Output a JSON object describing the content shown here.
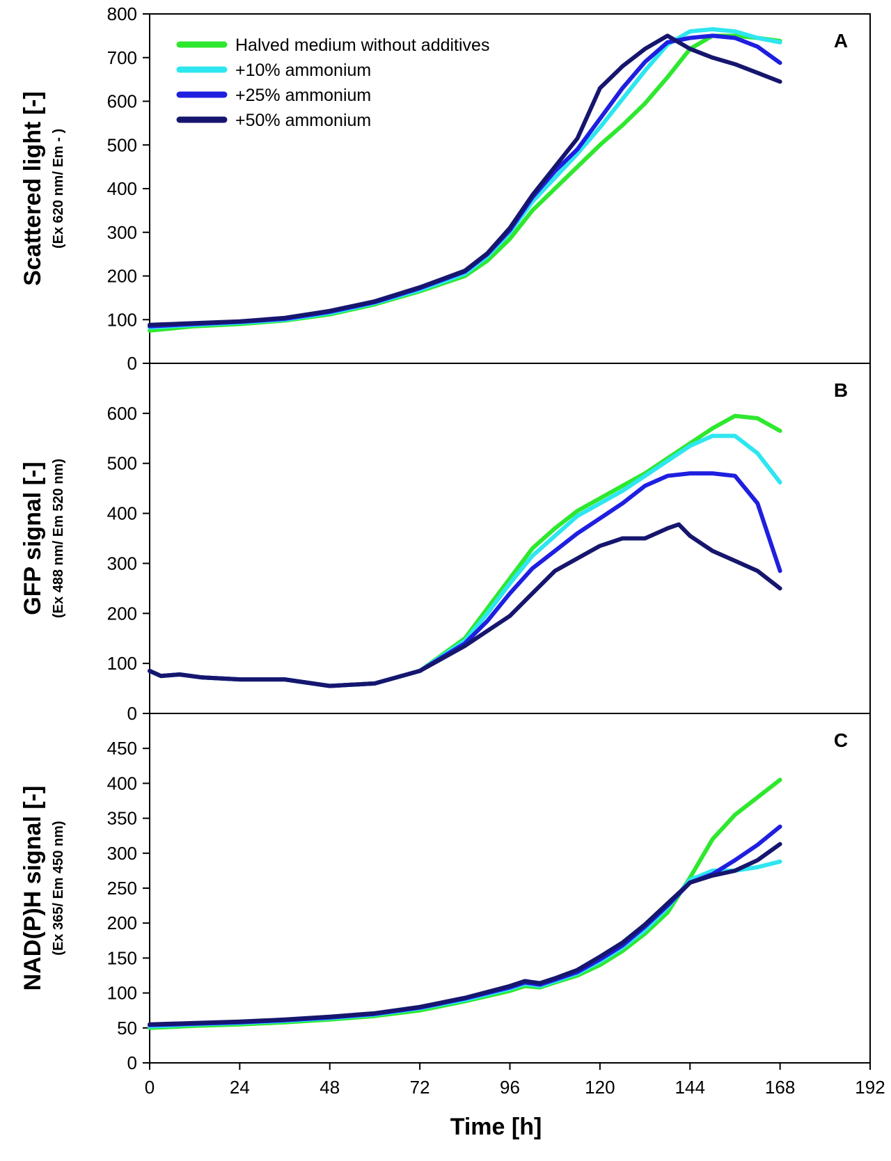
{
  "colors": {
    "Halved medium without additives": "#2ee82e",
    "+10% ammonium": "#2ee6f0",
    "+25% ammonium": "#1f1fe0",
    "+50% ammonium": "#16166e"
  },
  "chart_data": [
    {
      "type": "line",
      "panel": "A",
      "ylabel": "Scattered light   [-]",
      "ylabel_sub": "(Ex 620 nm/ Em - )",
      "ylim": [
        0,
        800
      ],
      "yticks": [
        0,
        100,
        200,
        300,
        400,
        500,
        600,
        700,
        800
      ],
      "xlim": [
        0,
        192
      ],
      "legend": "top-left",
      "series": [
        {
          "name": "Halved medium without additives",
          "x": [
            0,
            12,
            24,
            36,
            48,
            60,
            72,
            84,
            90,
            96,
            102,
            108,
            114,
            120,
            126,
            132,
            138,
            144,
            150,
            156,
            162,
            168
          ],
          "y": [
            75,
            85,
            90,
            98,
            112,
            135,
            165,
            200,
            235,
            285,
            350,
            400,
            450,
            500,
            545,
            595,
            655,
            720,
            750,
            750,
            745,
            738
          ]
        },
        {
          "name": "+10% ammonium",
          "x": [
            0,
            12,
            24,
            36,
            48,
            60,
            72,
            84,
            90,
            96,
            102,
            108,
            114,
            120,
            126,
            132,
            138,
            144,
            150,
            156,
            162,
            168
          ],
          "y": [
            82,
            88,
            93,
            100,
            115,
            138,
            168,
            205,
            245,
            300,
            370,
            425,
            480,
            540,
            605,
            670,
            730,
            760,
            765,
            760,
            745,
            735
          ]
        },
        {
          "name": "+25% ammonium",
          "x": [
            0,
            12,
            24,
            36,
            48,
            60,
            72,
            84,
            90,
            96,
            102,
            108,
            114,
            120,
            126,
            132,
            138,
            144,
            150,
            156,
            162,
            168
          ],
          "y": [
            85,
            90,
            95,
            102,
            118,
            140,
            172,
            210,
            250,
            305,
            380,
            440,
            490,
            560,
            630,
            690,
            735,
            745,
            750,
            745,
            725,
            688
          ]
        },
        {
          "name": "+50% ammonium",
          "x": [
            0,
            12,
            24,
            36,
            48,
            60,
            72,
            84,
            90,
            96,
            102,
            108,
            114,
            120,
            126,
            132,
            138,
            144,
            150,
            156,
            162,
            168
          ],
          "y": [
            88,
            92,
            96,
            104,
            120,
            142,
            174,
            212,
            252,
            310,
            385,
            450,
            515,
            630,
            680,
            720,
            750,
            720,
            700,
            685,
            665,
            645
          ]
        }
      ]
    },
    {
      "type": "line",
      "panel": "B",
      "ylabel": "GFP signal   [-]",
      "ylabel_sub": "(Ex 488 nm/ Em 520 nm)",
      "ylim": [
        0,
        700
      ],
      "yticks": [
        0,
        100,
        200,
        300,
        400,
        500,
        600
      ],
      "xlim": [
        0,
        192
      ],
      "series": [
        {
          "name": "Halved medium without additives",
          "x": [
            0,
            3,
            8,
            14,
            24,
            36,
            48,
            60,
            72,
            84,
            90,
            96,
            102,
            108,
            114,
            120,
            126,
            132,
            138,
            144,
            150,
            156,
            162,
            168
          ],
          "y": [
            85,
            75,
            78,
            72,
            68,
            68,
            55,
            60,
            85,
            150,
            210,
            270,
            330,
            370,
            405,
            430,
            455,
            480,
            510,
            540,
            570,
            595,
            590,
            565
          ]
        },
        {
          "name": "+10% ammonium",
          "x": [
            0,
            3,
            8,
            14,
            24,
            36,
            48,
            60,
            72,
            84,
            90,
            96,
            102,
            108,
            114,
            120,
            126,
            132,
            138,
            144,
            150,
            156,
            162,
            168
          ],
          "y": [
            85,
            75,
            78,
            72,
            68,
            68,
            55,
            60,
            85,
            145,
            200,
            260,
            315,
            355,
            395,
            420,
            445,
            475,
            505,
            535,
            555,
            555,
            520,
            462
          ]
        },
        {
          "name": "+25% ammonium",
          "x": [
            0,
            3,
            8,
            14,
            24,
            36,
            48,
            60,
            72,
            84,
            90,
            96,
            102,
            108,
            114,
            120,
            126,
            132,
            138,
            144,
            150,
            156,
            162,
            168
          ],
          "y": [
            85,
            75,
            78,
            72,
            68,
            68,
            55,
            60,
            85,
            140,
            185,
            240,
            290,
            325,
            360,
            390,
            420,
            455,
            475,
            480,
            480,
            475,
            420,
            285
          ]
        },
        {
          "name": "+50% ammonium",
          "x": [
            0,
            3,
            8,
            14,
            24,
            36,
            48,
            60,
            72,
            84,
            90,
            96,
            102,
            108,
            114,
            120,
            126,
            132,
            138,
            141,
            144,
            150,
            156,
            162,
            168
          ],
          "y": [
            85,
            75,
            78,
            72,
            68,
            68,
            55,
            60,
            85,
            135,
            165,
            195,
            240,
            285,
            310,
            335,
            350,
            350,
            370,
            378,
            355,
            325,
            305,
            285,
            250
          ]
        }
      ]
    },
    {
      "type": "line",
      "panel": "C",
      "ylabel": "NAD(P)H signal   [-]",
      "ylabel_sub": "(Ex 365/ Em 450 nm)",
      "ylim": [
        0,
        500
      ],
      "yticks": [
        0,
        50,
        100,
        150,
        200,
        250,
        300,
        350,
        400,
        450
      ],
      "xlim": [
        0,
        192
      ],
      "xlabel": "Time    [h]",
      "xticks": [
        0,
        24,
        48,
        72,
        96,
        120,
        144,
        168,
        192
      ],
      "series": [
        {
          "name": "Halved medium without additives",
          "x": [
            0,
            12,
            24,
            36,
            48,
            60,
            72,
            84,
            96,
            100,
            104,
            108,
            114,
            120,
            126,
            132,
            138,
            144,
            150,
            156,
            162,
            168
          ],
          "y": [
            50,
            53,
            55,
            58,
            62,
            67,
            75,
            88,
            103,
            110,
            108,
            115,
            125,
            140,
            160,
            185,
            215,
            265,
            320,
            355,
            380,
            405
          ]
        },
        {
          "name": "+10% ammonium",
          "x": [
            0,
            12,
            24,
            36,
            48,
            60,
            72,
            84,
            96,
            100,
            104,
            108,
            114,
            120,
            126,
            132,
            138,
            144,
            150,
            156,
            162,
            168
          ],
          "y": [
            52,
            55,
            57,
            60,
            64,
            69,
            78,
            90,
            106,
            113,
            110,
            117,
            128,
            145,
            165,
            190,
            222,
            262,
            275,
            275,
            280,
            288
          ]
        },
        {
          "name": "+25% ammonium",
          "x": [
            0,
            12,
            24,
            36,
            48,
            60,
            72,
            84,
            96,
            100,
            104,
            108,
            114,
            120,
            126,
            132,
            138,
            144,
            150,
            156,
            162,
            168
          ],
          "y": [
            54,
            56,
            58,
            61,
            65,
            70,
            79,
            92,
            108,
            115,
            112,
            119,
            130,
            148,
            168,
            195,
            225,
            258,
            270,
            290,
            312,
            338
          ]
        },
        {
          "name": "+50% ammonium",
          "x": [
            0,
            12,
            24,
            36,
            48,
            60,
            72,
            84,
            96,
            100,
            104,
            108,
            114,
            120,
            126,
            132,
            138,
            144,
            150,
            156,
            162,
            168
          ],
          "y": [
            55,
            57,
            59,
            62,
            66,
            71,
            80,
            93,
            110,
            117,
            114,
            121,
            133,
            152,
            172,
            198,
            228,
            258,
            268,
            275,
            290,
            313
          ]
        }
      ]
    }
  ]
}
